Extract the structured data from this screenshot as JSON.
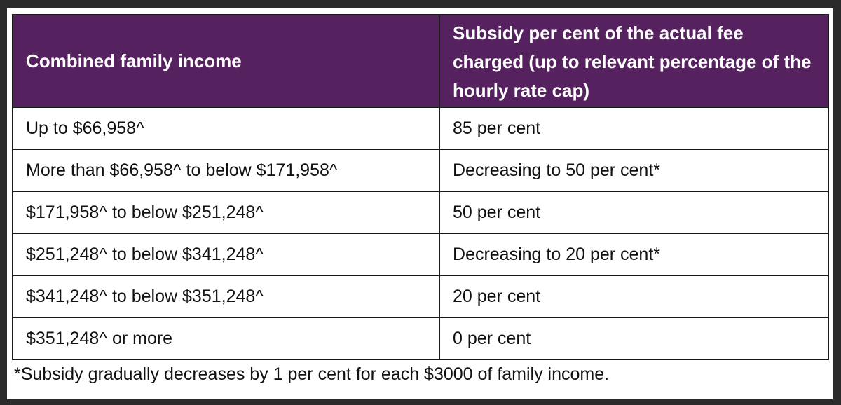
{
  "table": {
    "headers": [
      "Combined family income",
      "Subsidy per cent of the actual fee charged (up to relevant percentage of the hourly rate cap)"
    ],
    "rows": [
      [
        "Up to $66,958^",
        "85 per cent"
      ],
      [
        "More than $66,958^ to below $171,958^",
        "Decreasing to 50 per cent*"
      ],
      [
        "$171,958^ to below $251,248^",
        "50 per cent"
      ],
      [
        "$251,248^ to below $341,248^",
        "Decreasing to 20 per cent*"
      ],
      [
        "$341,248^ to below $351,248^",
        "20 per cent"
      ],
      [
        "$351,248^ or more",
        "0 per cent"
      ]
    ]
  },
  "footnote": "*Subsidy gradually decreases by 1 per cent for each $3000 of family  income.",
  "colors": {
    "header_background": "#55215f",
    "header_text": "#ffffff",
    "border": "#1a1a1a"
  }
}
